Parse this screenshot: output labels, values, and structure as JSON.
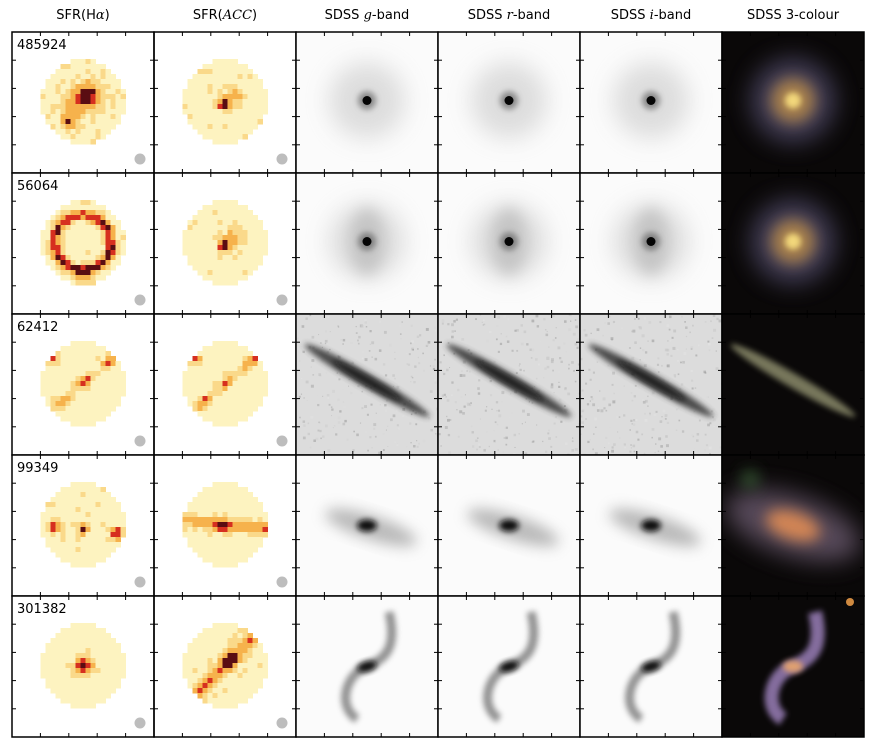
{
  "figure": {
    "columns": [
      {
        "key": "ha",
        "pre": "SFR(H",
        "math": "α",
        "post": ")"
      },
      {
        "key": "acc",
        "pre": "SFR(",
        "math": "ACC",
        "post": ")"
      },
      {
        "key": "g",
        "pre": "SDSS ",
        "math": "g",
        "post": "-band"
      },
      {
        "key": "r",
        "pre": "SDSS ",
        "math": "r",
        "post": "-band"
      },
      {
        "key": "i",
        "pre": "SDSS ",
        "math": "i",
        "post": "-band"
      },
      {
        "key": "rgb",
        "pre": "SDSS 3-colour",
        "math": "",
        "post": ""
      }
    ],
    "galaxies": [
      {
        "id": "485924",
        "morph": "face-on-bulge",
        "ha": "asym-blobs",
        "acc": "center-blobs"
      },
      {
        "id": "56064",
        "morph": "face-on-ring",
        "ha": "ring",
        "acc": "center-blobs"
      },
      {
        "id": "62412",
        "morph": "edge-on",
        "ha": "diag-streak",
        "acc": "diag-streak"
      },
      {
        "id": "99349",
        "morph": "inclined",
        "ha": "sparse-edges",
        "acc": "horizontal-band"
      },
      {
        "id": "301382",
        "morph": "s-shape",
        "ha": "center-only",
        "acc": "diag-blobs"
      }
    ],
    "colors": {
      "map_low": "#fdf3c0",
      "map_mid": "#f6b24c",
      "map_high": "#d62f1f",
      "map_peak": "#5a0d12",
      "beam": "#bdbdbd",
      "noise_bg": "#dcdcdc",
      "rgb_bg": "#0a0808"
    }
  }
}
